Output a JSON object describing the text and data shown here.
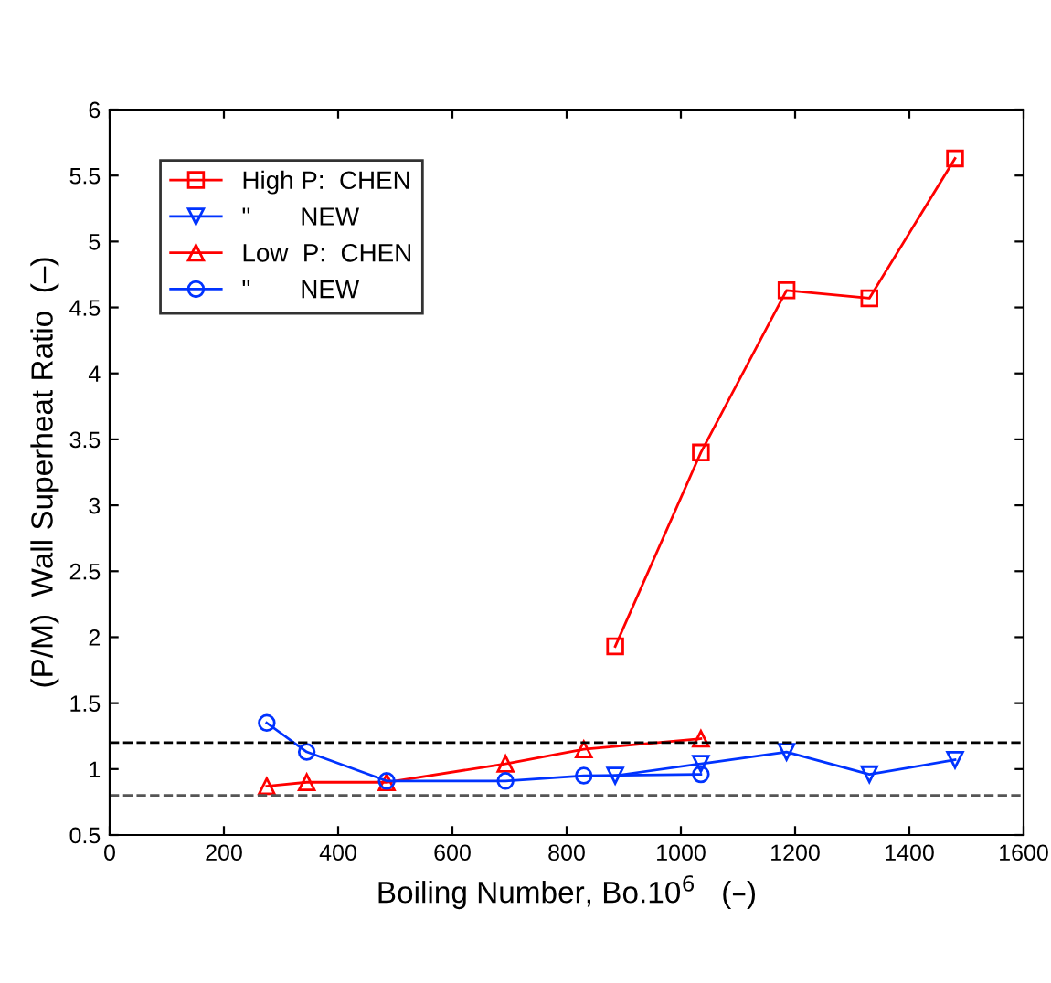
{
  "chart_data": {
    "type": "line",
    "xlabel": "Boiling Number, Bo.10$^{6}$   (–)",
    "ylabel": "(P/M)  Wall Superheat Ratio  (–)",
    "xlim": [
      0,
      1600
    ],
    "xticks": [
      0,
      200,
      400,
      600,
      800,
      1000,
      1200,
      1400,
      1600
    ],
    "ylim": [
      0.5,
      6
    ],
    "yticks": [
      0.5,
      1,
      1.5,
      2,
      2.5,
      3,
      3.5,
      4,
      4.5,
      5,
      5.5,
      6
    ],
    "grid": false,
    "legend": "top left",
    "line_style": "solid",
    "series": [
      {
        "name": "High P:  CHEN",
        "color": "#ff0000",
        "marker": "square",
        "x": [
          885,
          1035,
          1185,
          1330,
          1480
        ],
        "values": [
          1.93,
          3.4,
          4.63,
          4.57,
          5.63
        ]
      },
      {
        "name": "\"       NEW",
        "color": "#0033ff",
        "marker": "triangle_down",
        "x": [
          885,
          1035,
          1185,
          1330,
          1480
        ],
        "values": [
          0.95,
          1.04,
          1.13,
          0.96,
          1.07
        ]
      },
      {
        "name": "Low  P:  CHEN",
        "color": "#ff0000",
        "marker": "triangle",
        "x": [
          275,
          345,
          485,
          693,
          830,
          1035
        ],
        "values": [
          0.87,
          0.9,
          0.9,
          1.04,
          1.15,
          1.23
        ]
      },
      {
        "name": "\"       NEW",
        "color": "#0033ff",
        "marker": "circle",
        "x": [
          275,
          345,
          485,
          693,
          830,
          1035
        ],
        "values": [
          1.35,
          1.13,
          0.91,
          0.91,
          0.95,
          0.96
        ]
      }
    ],
    "ref_lines": [
      {
        "axis": "y",
        "value": 1.2,
        "color": "#000000",
        "line_style": "dashed"
      },
      {
        "axis": "y",
        "value": 0.8,
        "color": "#555555",
        "line_style": "dashed"
      }
    ]
  }
}
